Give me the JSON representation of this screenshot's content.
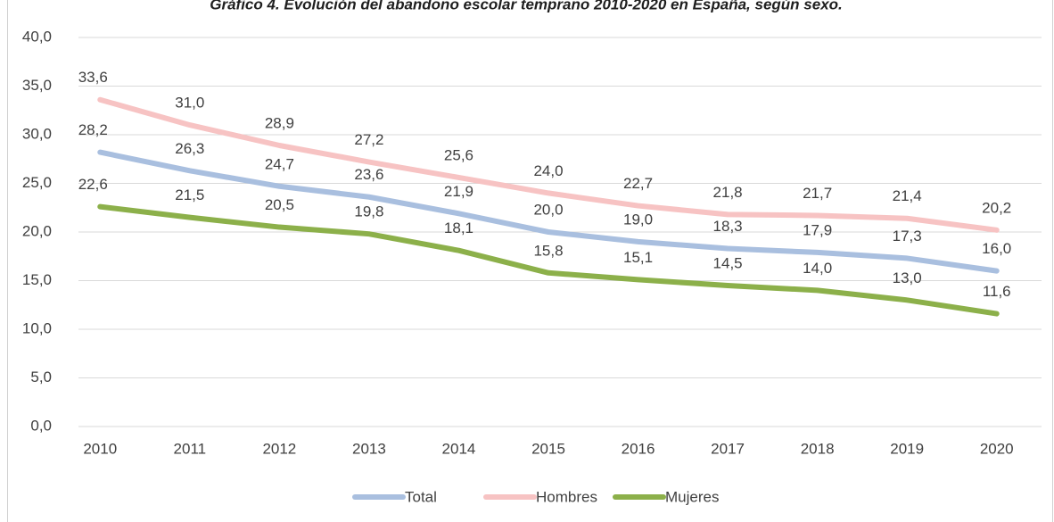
{
  "chart_data": {
    "type": "line",
    "title": "Gráfico 4. Evolución del abandono escolar temprano 2010-2020 en España, según sexo.",
    "categories": [
      "2010",
      "2011",
      "2012",
      "2013",
      "2014",
      "2015",
      "2016",
      "2017",
      "2018",
      "2019",
      "2020"
    ],
    "series": [
      {
        "name": "Total",
        "color": "#a9bfdf",
        "values": [
          28.2,
          26.3,
          24.7,
          23.6,
          21.9,
          20.0,
          19.0,
          18.3,
          17.9,
          17.3,
          16.0
        ],
        "value_labels": [
          "28,2",
          "26,3",
          "24,7",
          "23,6",
          "21,9",
          "20,0",
          "19,0",
          "18,3",
          "17,9",
          "17,3",
          "16,0"
        ]
      },
      {
        "name": "Hombres",
        "color": "#f7c3c3",
        "values": [
          33.6,
          31.0,
          28.9,
          27.2,
          25.6,
          24.0,
          22.7,
          21.8,
          21.7,
          21.4,
          20.2
        ],
        "value_labels": [
          "33,6",
          "31,0",
          "28,9",
          "27,2",
          "25,6",
          "24,0",
          "22,7",
          "21,8",
          "21,7",
          "21,4",
          "20,2"
        ]
      },
      {
        "name": "Mujeres",
        "color": "#8cb04a",
        "values": [
          22.6,
          21.5,
          20.5,
          19.8,
          18.1,
          15.8,
          15.1,
          14.5,
          14.0,
          13.0,
          11.6
        ],
        "value_labels": [
          "22,6",
          "21,5",
          "20,5",
          "19,8",
          "18,1",
          "15,8",
          "15,1",
          "14,5",
          "14,0",
          "13,0",
          "11,6"
        ]
      }
    ],
    "ylim": [
      0,
      40
    ],
    "yticks": [
      {
        "value": 0,
        "label": "0,0"
      },
      {
        "value": 5,
        "label": "5,0"
      },
      {
        "value": 10,
        "label": "10,0"
      },
      {
        "value": 15,
        "label": "15,0"
      },
      {
        "value": 20,
        "label": "20,0"
      },
      {
        "value": 25,
        "label": "25,0"
      },
      {
        "value": 30,
        "label": "30,0"
      },
      {
        "value": 35,
        "label": "35,0"
      },
      {
        "value": 40,
        "label": "40,0"
      }
    ],
    "grid": true,
    "legend": "bottom"
  }
}
